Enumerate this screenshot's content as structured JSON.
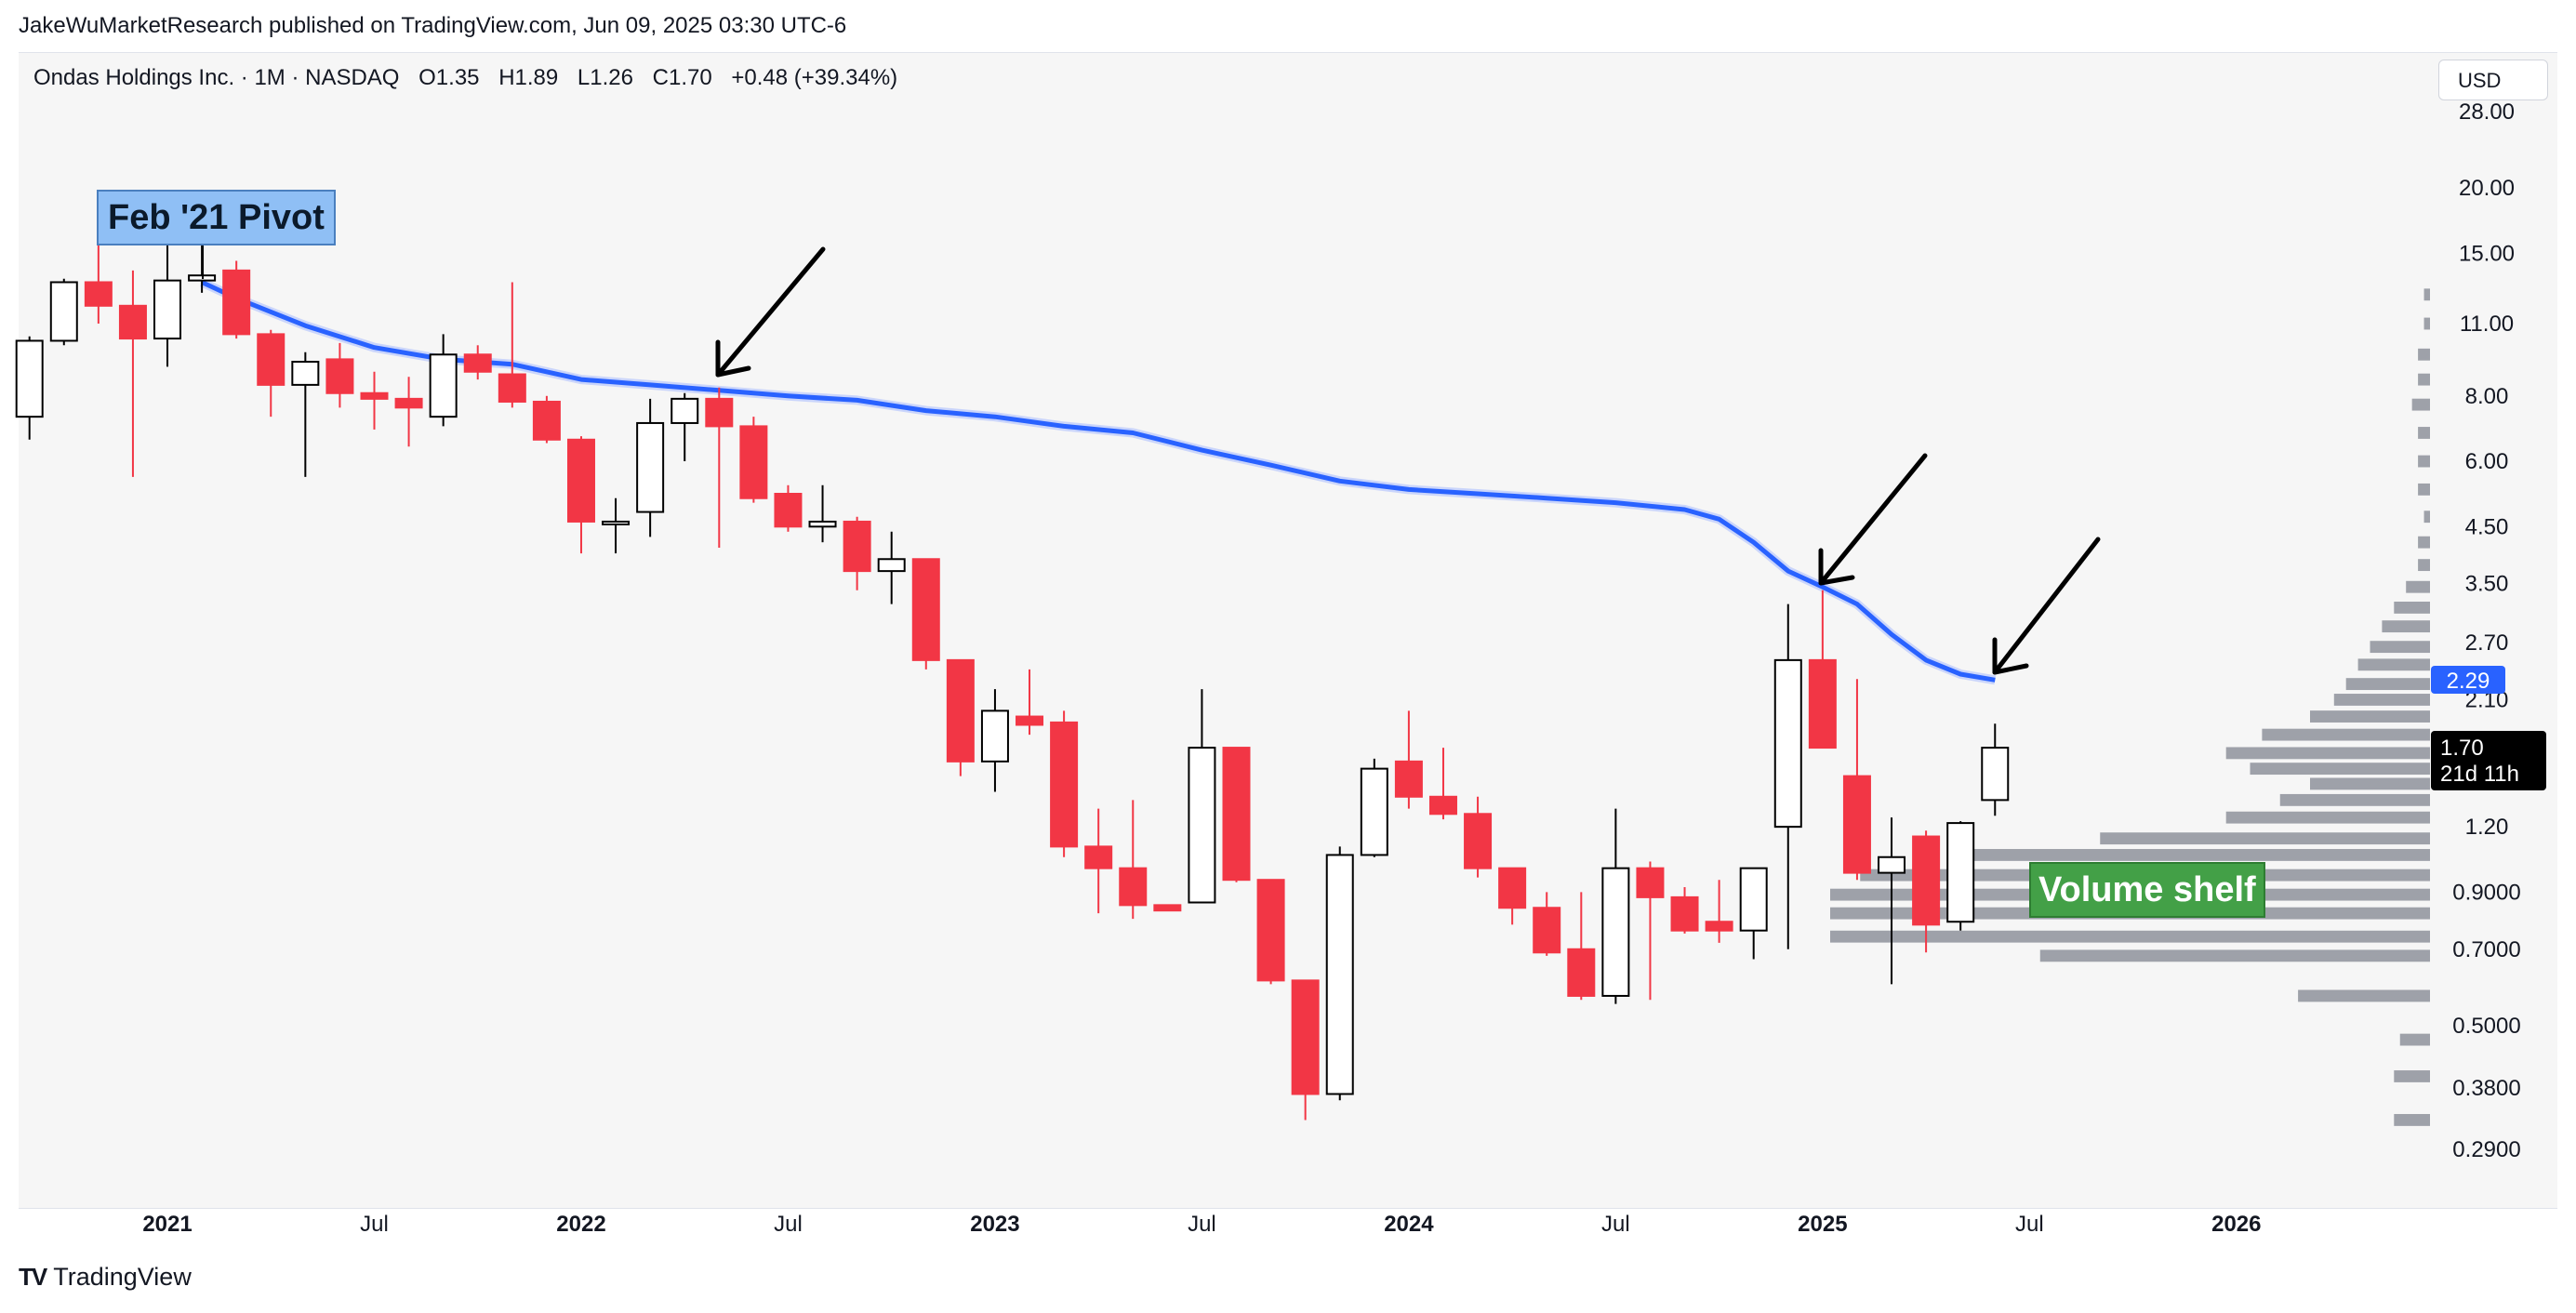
{
  "header": {
    "attribution": "JakeWuMarketResearch published on TradingView.com, Jun 09, 2025 03:30 UTC-6"
  },
  "legend": {
    "symbol": "Ondas Holdings Inc. · 1M · NASDAQ",
    "open": "O1.35",
    "high": "H1.89",
    "low": "L1.26",
    "close": "C1.70",
    "change": "+0.48 (+39.34%)"
  },
  "currency": "USD",
  "footer": {
    "brand": "TradingView",
    "logo_glyph": "TV"
  },
  "annotations": {
    "pivot": "Feb '21 Pivot",
    "shelf": "Volume shelf"
  },
  "price_tags": {
    "ma_value": "2.29",
    "last_close": "1.70",
    "countdown": "21d 11h"
  },
  "colors": {
    "up_body": "#ffffff",
    "down_body": "#f23645",
    "ma": "#2962ff",
    "volume_profile": "#9598a1",
    "pivot_box": "#8fbff5",
    "shelf_box": "#43a047"
  },
  "chart_data": {
    "type": "candlestick",
    "title": "Ondas Holdings Inc. · 1M · NASDAQ",
    "scale": "logarithmic",
    "y_ticks": [
      "28.00",
      "20.00",
      "15.00",
      "11.00",
      "8.00",
      "6.00",
      "4.50",
      "3.50",
      "2.70",
      "2.10",
      "1.20",
      "0.9000",
      "0.7000",
      "0.5000",
      "0.3800",
      "0.2900"
    ],
    "x_ticks": [
      {
        "label": "2021",
        "month": 4,
        "bold": true
      },
      {
        "label": "Jul",
        "month": 10,
        "bold": false
      },
      {
        "label": "2022",
        "month": 16,
        "bold": true
      },
      {
        "label": "Jul",
        "month": 22,
        "bold": false
      },
      {
        "label": "2023",
        "month": 28,
        "bold": true
      },
      {
        "label": "Jul",
        "month": 34,
        "bold": false
      },
      {
        "label": "2024",
        "month": 40,
        "bold": true
      },
      {
        "label": "Jul",
        "month": 46,
        "bold": false
      },
      {
        "label": "2025",
        "month": 52,
        "bold": true
      },
      {
        "label": "Jul",
        "month": 58,
        "bold": false
      },
      {
        "label": "2026",
        "month": 64,
        "bold": true
      }
    ],
    "candles": [
      {
        "date": "2020-09",
        "o": 7.3,
        "h": 10.4,
        "l": 6.6,
        "c": 10.2
      },
      {
        "date": "2020-10",
        "o": 10.2,
        "h": 13.4,
        "l": 10.0,
        "c": 13.2
      },
      {
        "date": "2020-11",
        "o": 13.2,
        "h": 15.9,
        "l": 11.0,
        "c": 11.9
      },
      {
        "date": "2020-12",
        "o": 11.9,
        "h": 13.9,
        "l": 5.6,
        "c": 10.3
      },
      {
        "date": "2021-01",
        "o": 10.3,
        "h": 16.0,
        "l": 9.1,
        "c": 13.3
      },
      {
        "date": "2021-02",
        "o": 13.3,
        "h": 16.3,
        "l": 12.6,
        "c": 13.6
      },
      {
        "date": "2021-03",
        "o": 13.9,
        "h": 14.5,
        "l": 10.3,
        "c": 10.5
      },
      {
        "date": "2021-04",
        "o": 10.5,
        "h": 10.7,
        "l": 7.3,
        "c": 8.4
      },
      {
        "date": "2021-05",
        "o": 8.4,
        "h": 9.7,
        "l": 5.6,
        "c": 9.3
      },
      {
        "date": "2021-06",
        "o": 9.4,
        "h": 10.1,
        "l": 7.6,
        "c": 8.1
      },
      {
        "date": "2021-07",
        "o": 8.1,
        "h": 8.9,
        "l": 6.9,
        "c": 7.9
      },
      {
        "date": "2021-08",
        "o": 7.9,
        "h": 8.7,
        "l": 6.4,
        "c": 7.6
      },
      {
        "date": "2021-09",
        "o": 7.3,
        "h": 10.5,
        "l": 7.0,
        "c": 9.6
      },
      {
        "date": "2021-10",
        "o": 9.6,
        "h": 10.0,
        "l": 8.6,
        "c": 8.9
      },
      {
        "date": "2021-11",
        "o": 8.8,
        "h": 13.2,
        "l": 7.6,
        "c": 7.8
      },
      {
        "date": "2021-12",
        "o": 7.8,
        "h": 8.0,
        "l": 6.5,
        "c": 6.6
      },
      {
        "date": "2022-01",
        "o": 6.6,
        "h": 6.7,
        "l": 4.0,
        "c": 4.6
      },
      {
        "date": "2022-02",
        "o": 4.6,
        "h": 5.1,
        "l": 4.0,
        "c": 4.6
      },
      {
        "date": "2022-03",
        "o": 4.8,
        "h": 7.9,
        "l": 4.3,
        "c": 7.1
      },
      {
        "date": "2022-04",
        "o": 7.1,
        "h": 8.1,
        "l": 6.0,
        "c": 7.9
      },
      {
        "date": "2022-05",
        "o": 7.9,
        "h": 8.3,
        "l": 4.1,
        "c": 7.0
      },
      {
        "date": "2022-06",
        "o": 7.0,
        "h": 7.3,
        "l": 5.0,
        "c": 5.1
      },
      {
        "date": "2022-07",
        "o": 5.2,
        "h": 5.4,
        "l": 4.4,
        "c": 4.5
      },
      {
        "date": "2022-08",
        "o": 4.5,
        "h": 5.4,
        "l": 4.2,
        "c": 4.6
      },
      {
        "date": "2022-09",
        "o": 4.6,
        "h": 4.7,
        "l": 3.4,
        "c": 3.7
      },
      {
        "date": "2022-10",
        "o": 3.7,
        "h": 4.4,
        "l": 3.2,
        "c": 3.9
      },
      {
        "date": "2022-11",
        "o": 3.9,
        "h": 3.9,
        "l": 2.4,
        "c": 2.5
      },
      {
        "date": "2022-12",
        "o": 2.5,
        "h": 2.5,
        "l": 1.5,
        "c": 1.6
      },
      {
        "date": "2023-01",
        "o": 1.6,
        "h": 2.2,
        "l": 1.4,
        "c": 2.0
      },
      {
        "date": "2023-02",
        "o": 1.95,
        "h": 2.4,
        "l": 1.8,
        "c": 1.88
      },
      {
        "date": "2023-03",
        "o": 1.9,
        "h": 2.0,
        "l": 1.05,
        "c": 1.1
      },
      {
        "date": "2023-04",
        "o": 1.1,
        "h": 1.3,
        "l": 0.82,
        "c": 1.0
      },
      {
        "date": "2023-05",
        "o": 1.0,
        "h": 1.35,
        "l": 0.8,
        "c": 0.85
      },
      {
        "date": "2023-06",
        "o": 0.85,
        "h": 0.85,
        "l": 0.83,
        "c": 0.83
      },
      {
        "date": "2023-07",
        "o": 0.86,
        "h": 2.2,
        "l": 0.86,
        "c": 1.7
      },
      {
        "date": "2023-08",
        "o": 1.7,
        "h": 1.7,
        "l": 0.94,
        "c": 0.95
      },
      {
        "date": "2023-09",
        "o": 0.95,
        "h": 0.95,
        "l": 0.6,
        "c": 0.61
      },
      {
        "date": "2023-10",
        "o": 0.61,
        "h": 0.61,
        "l": 0.33,
        "c": 0.37
      },
      {
        "date": "2023-11",
        "o": 0.37,
        "h": 1.1,
        "l": 0.36,
        "c": 1.06
      },
      {
        "date": "2023-12",
        "o": 1.06,
        "h": 1.62,
        "l": 1.05,
        "c": 1.55
      },
      {
        "date": "2024-01",
        "o": 1.6,
        "h": 2.0,
        "l": 1.3,
        "c": 1.37
      },
      {
        "date": "2024-02",
        "o": 1.37,
        "h": 1.7,
        "l": 1.24,
        "c": 1.27
      },
      {
        "date": "2024-03",
        "o": 1.27,
        "h": 1.37,
        "l": 0.96,
        "c": 1.0
      },
      {
        "date": "2024-04",
        "o": 1.0,
        "h": 1.0,
        "l": 0.78,
        "c": 0.84
      },
      {
        "date": "2024-05",
        "o": 0.84,
        "h": 0.9,
        "l": 0.68,
        "c": 0.69
      },
      {
        "date": "2024-06",
        "o": 0.7,
        "h": 0.9,
        "l": 0.56,
        "c": 0.57
      },
      {
        "date": "2024-07",
        "o": 0.57,
        "h": 1.3,
        "l": 0.55,
        "c": 1.0
      },
      {
        "date": "2024-08",
        "o": 1.0,
        "h": 1.03,
        "l": 0.56,
        "c": 0.88
      },
      {
        "date": "2024-09",
        "o": 0.88,
        "h": 0.92,
        "l": 0.75,
        "c": 0.76
      },
      {
        "date": "2024-10",
        "o": 0.79,
        "h": 0.95,
        "l": 0.72,
        "c": 0.76
      },
      {
        "date": "2024-11",
        "o": 0.76,
        "h": 0.99,
        "l": 0.67,
        "c": 1.0
      },
      {
        "date": "2024-12",
        "o": 1.2,
        "h": 3.2,
        "l": 0.7,
        "c": 2.5
      },
      {
        "date": "2025-01",
        "o": 2.5,
        "h": 3.4,
        "l": 1.7,
        "c": 1.7
      },
      {
        "date": "2025-02",
        "o": 1.5,
        "h": 2.3,
        "l": 0.95,
        "c": 0.98
      },
      {
        "date": "2025-03",
        "o": 0.98,
        "h": 1.25,
        "l": 0.6,
        "c": 1.05
      },
      {
        "date": "2025-04",
        "o": 1.15,
        "h": 1.18,
        "l": 0.69,
        "c": 0.78
      },
      {
        "date": "2025-05",
        "o": 0.79,
        "h": 1.23,
        "l": 0.76,
        "c": 1.22
      },
      {
        "date": "2025-06",
        "o": 1.35,
        "h": 1.89,
        "l": 1.26,
        "c": 1.7
      }
    ],
    "moving_average": {
      "name": "Moving average",
      "points": [
        {
          "month": 5,
          "value": 13.2
        },
        {
          "month": 6,
          "value": 12.3
        },
        {
          "month": 8,
          "value": 10.9
        },
        {
          "month": 10,
          "value": 9.9
        },
        {
          "month": 12,
          "value": 9.4
        },
        {
          "month": 14,
          "value": 9.2
        },
        {
          "month": 16,
          "value": 8.6
        },
        {
          "month": 18,
          "value": 8.4
        },
        {
          "month": 20,
          "value": 8.2
        },
        {
          "month": 22,
          "value": 8.0
        },
        {
          "month": 24,
          "value": 7.85
        },
        {
          "month": 26,
          "value": 7.5
        },
        {
          "month": 28,
          "value": 7.3
        },
        {
          "month": 30,
          "value": 7.0
        },
        {
          "month": 32,
          "value": 6.8
        },
        {
          "month": 34,
          "value": 6.3
        },
        {
          "month": 36,
          "value": 5.9
        },
        {
          "month": 38,
          "value": 5.5
        },
        {
          "month": 40,
          "value": 5.3
        },
        {
          "month": 42,
          "value": 5.2
        },
        {
          "month": 44,
          "value": 5.1
        },
        {
          "month": 46,
          "value": 5.0
        },
        {
          "month": 48,
          "value": 4.85
        },
        {
          "month": 49,
          "value": 4.65
        },
        {
          "month": 50,
          "value": 4.2
        },
        {
          "month": 51,
          "value": 3.7
        },
        {
          "month": 52,
          "value": 3.45
        },
        {
          "month": 53,
          "value": 3.2
        },
        {
          "month": 54,
          "value": 2.8
        },
        {
          "month": 55,
          "value": 2.5
        },
        {
          "month": 56,
          "value": 2.35
        },
        {
          "month": 57,
          "value": 2.29
        }
      ]
    },
    "volume_profile": [
      {
        "price": 0.33,
        "volume": 0.06
      },
      {
        "price": 0.4,
        "volume": 0.06
      },
      {
        "price": 0.47,
        "volume": 0.05
      },
      {
        "price": 0.57,
        "volume": 0.22
      },
      {
        "price": 0.68,
        "volume": 0.65
      },
      {
        "price": 0.74,
        "volume": 1.0
      },
      {
        "price": 0.82,
        "volume": 1.0
      },
      {
        "price": 0.89,
        "volume": 1.0
      },
      {
        "price": 0.97,
        "volume": 0.95
      },
      {
        "price": 1.06,
        "volume": 0.78
      },
      {
        "price": 1.14,
        "volume": 0.55
      },
      {
        "price": 1.25,
        "volume": 0.34
      },
      {
        "price": 1.35,
        "volume": 0.25
      },
      {
        "price": 1.45,
        "volume": 0.2
      },
      {
        "price": 1.55,
        "volume": 0.3
      },
      {
        "price": 1.66,
        "volume": 0.34
      },
      {
        "price": 1.8,
        "volume": 0.28
      },
      {
        "price": 1.95,
        "volume": 0.2
      },
      {
        "price": 2.1,
        "volume": 0.16
      },
      {
        "price": 2.25,
        "volume": 0.14
      },
      {
        "price": 2.45,
        "volume": 0.12
      },
      {
        "price": 2.65,
        "volume": 0.1
      },
      {
        "price": 2.9,
        "volume": 0.08
      },
      {
        "price": 3.15,
        "volume": 0.06
      },
      {
        "price": 3.45,
        "volume": 0.04
      },
      {
        "price": 3.8,
        "volume": 0.02
      },
      {
        "price": 4.2,
        "volume": 0.02
      },
      {
        "price": 4.7,
        "volume": 0.01
      },
      {
        "price": 5.3,
        "volume": 0.02
      },
      {
        "price": 6.0,
        "volume": 0.02
      },
      {
        "price": 6.8,
        "volume": 0.02
      },
      {
        "price": 7.7,
        "volume": 0.03
      },
      {
        "price": 8.6,
        "volume": 0.02
      },
      {
        "price": 9.6,
        "volume": 0.02
      },
      {
        "price": 11.0,
        "volume": 0.01
      },
      {
        "price": 12.5,
        "volume": 0.01
      }
    ]
  }
}
